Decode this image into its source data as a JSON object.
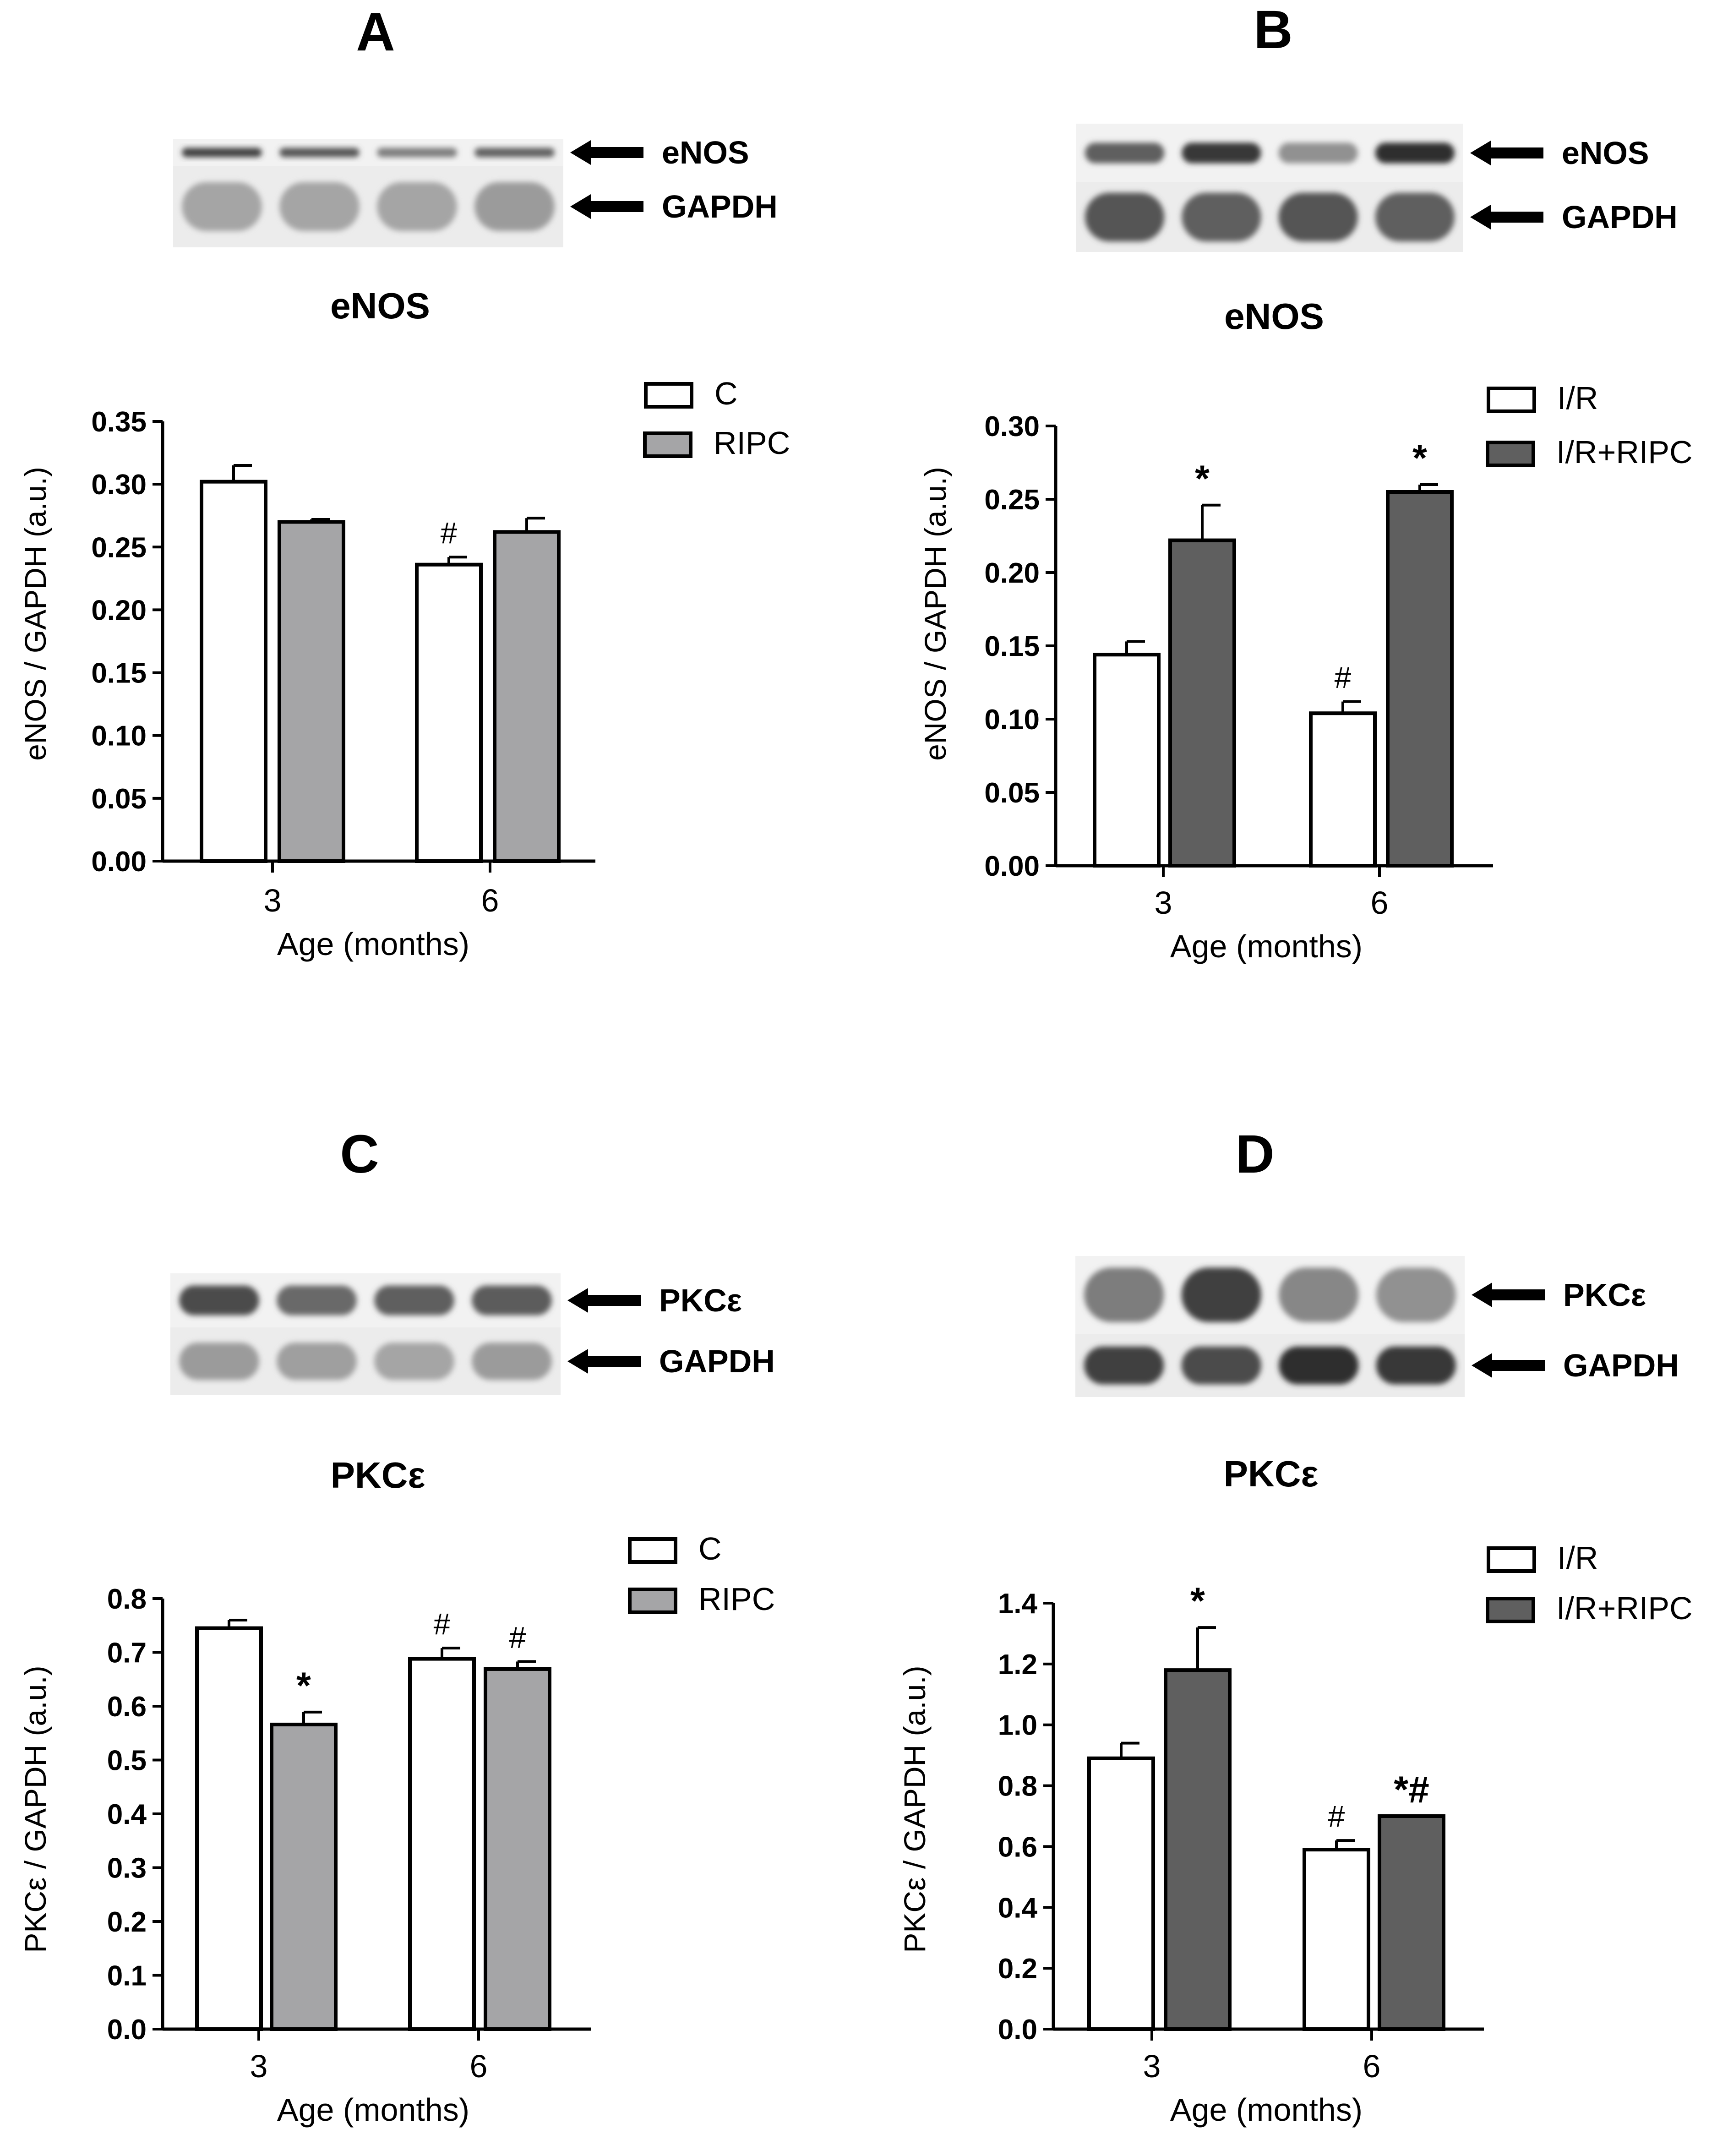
{
  "colors": {
    "c": "#ffffff",
    "ripc": "#a5a5a7",
    "ir": "#ffffff",
    "ir_ripc": "#5f5f5f",
    "ink": "#000000"
  },
  "icons": [
    "arrow-left-icon"
  ],
  "panels": [
    {
      "letter": "A",
      "blot": {
        "rows": [
          {
            "label": "eNOS",
            "intensities": [
              0.85,
              0.75,
              0.55,
              0.7
            ],
            "thickness": 0.35
          },
          {
            "label": "GAPDH",
            "intensities": [
              0.35,
              0.35,
              0.35,
              0.4
            ],
            "thickness": 0.6
          }
        ]
      },
      "chart_data": {
        "type": "bar",
        "title": "eNOS",
        "xlabel": "Age (months)",
        "ylabel": "eNOS / GAPDH (a.u.)",
        "categories": [
          "3",
          "6"
        ],
        "ylim": [
          0,
          0.35
        ],
        "yticks": [
          "0.00",
          "0.05",
          "0.10",
          "0.15",
          "0.20",
          "0.25",
          "0.30",
          "0.35"
        ],
        "legend_position": "top-right",
        "series": [
          {
            "name": "C",
            "color_key": "c",
            "values": [
              0.302,
              0.236
            ],
            "errors": [
              0.013,
              0.006
            ],
            "marks": [
              "",
              "#"
            ]
          },
          {
            "name": "RIPC",
            "color_key": "ripc",
            "values": [
              0.27,
              0.262
            ],
            "errors": [
              0.002,
              0.011
            ],
            "marks": [
              "",
              ""
            ]
          }
        ]
      }
    },
    {
      "letter": "B",
      "blot": {
        "rows": [
          {
            "label": "eNOS",
            "intensities": [
              0.7,
              0.9,
              0.45,
              0.95
            ],
            "thickness": 0.35
          },
          {
            "label": "GAPDH",
            "intensities": [
              0.75,
              0.7,
              0.75,
              0.7
            ],
            "thickness": 0.7
          }
        ]
      },
      "chart_data": {
        "type": "bar",
        "title": "eNOS",
        "xlabel": "Age (months)",
        "ylabel": "eNOS / GAPDH (a.u.)",
        "categories": [
          "3",
          "6"
        ],
        "ylim": [
          0,
          0.3
        ],
        "yticks": [
          "0.00",
          "0.05",
          "0.10",
          "0.15",
          "0.20",
          "0.25",
          "0.30"
        ],
        "legend_position": "top-right",
        "series": [
          {
            "name": "I/R",
            "color_key": "ir",
            "values": [
              0.144,
              0.104
            ],
            "errors": [
              0.009,
              0.008
            ],
            "marks": [
              "",
              "#"
            ]
          },
          {
            "name": "I/R+RIPC",
            "color_key": "ir_ripc",
            "values": [
              0.222,
              0.255
            ],
            "errors": [
              0.024,
              0.005
            ],
            "marks": [
              "*",
              "*"
            ]
          }
        ]
      }
    },
    {
      "letter": "C",
      "blot": {
        "rows": [
          {
            "label": "PKCε",
            "intensities": [
              0.8,
              0.65,
              0.7,
              0.72
            ],
            "thickness": 0.55
          },
          {
            "label": "GAPDH",
            "intensities": [
              0.4,
              0.38,
              0.35,
              0.4
            ],
            "thickness": 0.55
          }
        ]
      },
      "chart_data": {
        "type": "bar",
        "title": "PKCε",
        "xlabel": "Age (months)",
        "ylabel": "PKCε / GAPDH (a.u.)",
        "categories": [
          "3",
          "6"
        ],
        "ylim": [
          0,
          0.8
        ],
        "yticks": [
          "0.0",
          "0.1",
          "0.2",
          "0.3",
          "0.4",
          "0.5",
          "0.6",
          "0.7",
          "0.8"
        ],
        "legend_position": "top-right",
        "series": [
          {
            "name": "C",
            "color_key": "c",
            "values": [
              0.745,
              0.688
            ],
            "errors": [
              0.015,
              0.02
            ],
            "marks": [
              "",
              "#"
            ]
          },
          {
            "name": "RIPC",
            "color_key": "ripc",
            "values": [
              0.566,
              0.669
            ],
            "errors": [
              0.023,
              0.014
            ],
            "marks": [
              "*",
              "#"
            ]
          }
        ]
      }
    },
    {
      "letter": "D",
      "blot": {
        "rows": [
          {
            "label": "PKCε",
            "intensities": [
              0.55,
              0.85,
              0.5,
              0.45
            ],
            "thickness": 0.7
          },
          {
            "label": "GAPDH",
            "intensities": [
              0.85,
              0.8,
              0.95,
              0.9
            ],
            "thickness": 0.6
          }
        ]
      },
      "chart_data": {
        "type": "bar",
        "title": "PKCε",
        "xlabel": "Age (months)",
        "ylabel": "PKCε / GAPDH (a.u.)",
        "categories": [
          "3",
          "6"
        ],
        "ylim": [
          0,
          1.4
        ],
        "yticks": [
          "0.0",
          "0.2",
          "0.4",
          "0.6",
          "0.8",
          "1.0",
          "1.2",
          "1.4"
        ],
        "legend_position": "top-right",
        "series": [
          {
            "name": "I/R",
            "color_key": "ir",
            "values": [
              0.89,
              0.59
            ],
            "errors": [
              0.05,
              0.03
            ],
            "marks": [
              "",
              "#"
            ]
          },
          {
            "name": "I/R+RIPC",
            "color_key": "ir_ripc",
            "values": [
              1.18,
              0.7
            ],
            "errors": [
              0.14,
              0.0
            ],
            "marks": [
              "*",
              "*#"
            ]
          }
        ]
      }
    }
  ]
}
